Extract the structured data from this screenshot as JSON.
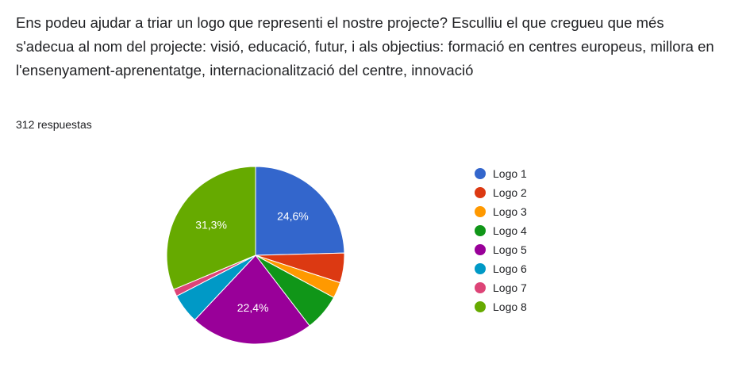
{
  "question": "Ens podeu ajudar a triar un logo que representi el nostre projecte? Esculliu el que cregueu que més s'adecua al nom del projecte: visió, educació, futur, i als objectius: formació en centres europeus, millora en l'ensenyament-aprenentatge, internacionalització del centre, innovació",
  "responses": "312 respuestas",
  "chart_data": {
    "type": "pie",
    "start": "top, clockwise",
    "legend_position": "right",
    "categories": [
      "Logo 1",
      "Logo 2",
      "Logo 3",
      "Logo 4",
      "Logo 5",
      "Logo 6",
      "Logo 7",
      "Logo 8"
    ],
    "values": [
      24.6,
      5.4,
      2.9,
      6.7,
      22.4,
      5.4,
      1.3,
      31.3
    ],
    "labels": [
      "24,6%",
      "",
      "",
      "",
      "22,4%",
      "",
      "",
      "31,3%"
    ],
    "colors": [
      "#3366cc",
      "#dc3912",
      "#ff9900",
      "#109618",
      "#990099",
      "#0099c6",
      "#dd4477",
      "#66aa00"
    ]
  }
}
